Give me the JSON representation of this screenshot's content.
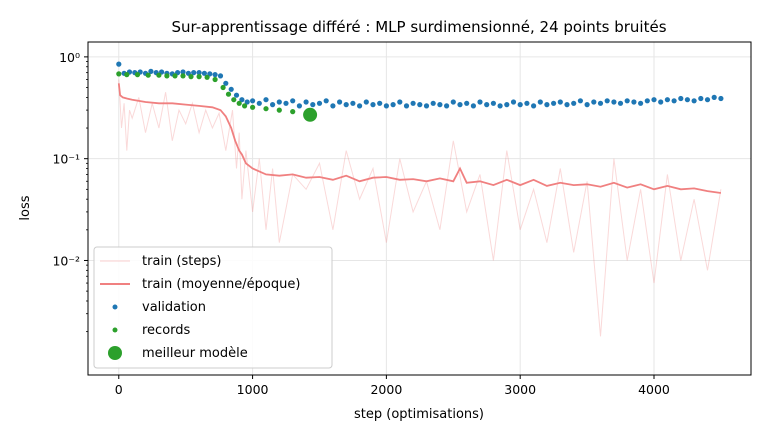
{
  "chart_data": {
    "type": "line",
    "title": "Sur-apprentissage différé : MLP surdimensionné, 24 points bruités",
    "xlabel": "step (optimisations)",
    "ylabel": "loss",
    "xlim": [
      -230,
      4725
    ],
    "ylim": [
      0.00075,
      1.4
    ],
    "yscale": "log",
    "grid": true,
    "legend_position": "lower-left",
    "x_ticks": [
      0,
      1000,
      2000,
      3000,
      4000
    ],
    "x_tick_labels": [
      "0",
      "1000",
      "2000",
      "3000",
      "4000"
    ],
    "y_ticks": [
      0.01,
      0.1,
      1
    ],
    "y_tick_labels": [
      "10⁻²",
      "10⁻¹",
      "10⁰"
    ],
    "series": [
      {
        "name": "train (steps)",
        "style": "thin-line",
        "color": "#f08080",
        "x": [
          0,
          20,
          40,
          60,
          80,
          100,
          150,
          200,
          250,
          300,
          350,
          400,
          450,
          500,
          550,
          600,
          650,
          700,
          750,
          800,
          850,
          880,
          900,
          920,
          950,
          1000,
          1050,
          1100,
          1150,
          1200,
          1300,
          1400,
          1500,
          1600,
          1700,
          1800,
          1900,
          2000,
          2100,
          2200,
          2300,
          2400,
          2500,
          2600,
          2700,
          2800,
          2900,
          3000,
          3100,
          3200,
          3300,
          3400,
          3500,
          3600,
          3700,
          3800,
          3900,
          4000,
          4100,
          4200,
          4300,
          4400,
          4500
        ],
        "y": [
          0.6,
          0.2,
          0.35,
          0.12,
          0.3,
          0.25,
          0.4,
          0.18,
          0.35,
          0.2,
          0.45,
          0.15,
          0.3,
          0.22,
          0.35,
          0.18,
          0.3,
          0.2,
          0.28,
          0.12,
          0.3,
          0.08,
          0.18,
          0.04,
          0.12,
          0.03,
          0.1,
          0.02,
          0.08,
          0.015,
          0.07,
          0.05,
          0.09,
          0.02,
          0.12,
          0.04,
          0.08,
          0.015,
          0.1,
          0.03,
          0.06,
          0.02,
          0.15,
          0.03,
          0.07,
          0.01,
          0.12,
          0.02,
          0.05,
          0.015,
          0.08,
          0.012,
          0.06,
          0.0018,
          0.1,
          0.01,
          0.05,
          0.006,
          0.07,
          0.01,
          0.04,
          0.008,
          0.05
        ]
      },
      {
        "name": "train (moyenne/époque)",
        "style": "line",
        "color": "#f08080",
        "x": [
          0,
          10,
          30,
          60,
          100,
          200,
          300,
          400,
          500,
          600,
          700,
          760,
          800,
          840,
          870,
          900,
          920,
          950,
          1000,
          1050,
          1100,
          1200,
          1300,
          1400,
          1500,
          1600,
          1700,
          1800,
          1900,
          2000,
          2100,
          2200,
          2300,
          2400,
          2500,
          2550,
          2600,
          2700,
          2800,
          2900,
          3000,
          3100,
          3200,
          3300,
          3400,
          3500,
          3600,
          3700,
          3800,
          3900,
          4000,
          4100,
          4200,
          4300,
          4400,
          4500
        ],
        "y": [
          0.55,
          0.42,
          0.4,
          0.39,
          0.38,
          0.36,
          0.35,
          0.35,
          0.34,
          0.33,
          0.32,
          0.3,
          0.26,
          0.2,
          0.15,
          0.12,
          0.11,
          0.09,
          0.08,
          0.075,
          0.07,
          0.068,
          0.07,
          0.065,
          0.066,
          0.062,
          0.068,
          0.06,
          0.065,
          0.066,
          0.062,
          0.063,
          0.06,
          0.064,
          0.06,
          0.08,
          0.058,
          0.06,
          0.055,
          0.062,
          0.055,
          0.062,
          0.054,
          0.058,
          0.055,
          0.056,
          0.053,
          0.058,
          0.052,
          0.056,
          0.05,
          0.054,
          0.05,
          0.051,
          0.048,
          0.046
        ]
      },
      {
        "name": "validation",
        "style": "points",
        "color": "#1f77b4",
        "x": [
          0,
          40,
          80,
          120,
          160,
          200,
          240,
          280,
          320,
          360,
          400,
          440,
          480,
          520,
          560,
          600,
          640,
          680,
          720,
          760,
          800,
          840,
          880,
          920,
          960,
          1000,
          1050,
          1100,
          1150,
          1200,
          1250,
          1300,
          1350,
          1400,
          1450,
          1500,
          1550,
          1600,
          1650,
          1700,
          1750,
          1800,
          1850,
          1900,
          1950,
          2000,
          2050,
          2100,
          2150,
          2200,
          2250,
          2300,
          2350,
          2400,
          2450,
          2500,
          2550,
          2600,
          2650,
          2700,
          2750,
          2800,
          2850,
          2900,
          2950,
          3000,
          3050,
          3100,
          3150,
          3200,
          3250,
          3300,
          3350,
          3400,
          3450,
          3500,
          3550,
          3600,
          3650,
          3700,
          3750,
          3800,
          3850,
          3900,
          3950,
          4000,
          4050,
          4100,
          4150,
          4200,
          4250,
          4300,
          4350,
          4400,
          4450,
          4500
        ],
        "y": [
          0.85,
          0.69,
          0.71,
          0.7,
          0.71,
          0.69,
          0.72,
          0.7,
          0.71,
          0.69,
          0.68,
          0.7,
          0.71,
          0.69,
          0.7,
          0.7,
          0.69,
          0.68,
          0.67,
          0.65,
          0.55,
          0.48,
          0.42,
          0.38,
          0.36,
          0.37,
          0.35,
          0.38,
          0.34,
          0.36,
          0.35,
          0.37,
          0.33,
          0.36,
          0.34,
          0.35,
          0.37,
          0.33,
          0.36,
          0.34,
          0.35,
          0.33,
          0.36,
          0.34,
          0.35,
          0.33,
          0.34,
          0.36,
          0.33,
          0.35,
          0.34,
          0.33,
          0.35,
          0.34,
          0.33,
          0.36,
          0.34,
          0.35,
          0.33,
          0.36,
          0.34,
          0.35,
          0.33,
          0.34,
          0.36,
          0.34,
          0.35,
          0.33,
          0.36,
          0.34,
          0.35,
          0.36,
          0.34,
          0.35,
          0.37,
          0.34,
          0.36,
          0.35,
          0.37,
          0.36,
          0.35,
          0.37,
          0.36,
          0.35,
          0.37,
          0.38,
          0.36,
          0.38,
          0.37,
          0.39,
          0.38,
          0.37,
          0.39,
          0.38,
          0.4,
          0.39
        ]
      },
      {
        "name": "records",
        "style": "points",
        "color": "#2ca02c",
        "x": [
          0,
          60,
          140,
          220,
          300,
          360,
          420,
          480,
          540,
          600,
          660,
          720,
          780,
          820,
          860,
          900,
          940,
          1000,
          1100,
          1200,
          1300,
          1400,
          1430
        ],
        "y": [
          0.68,
          0.67,
          0.67,
          0.66,
          0.66,
          0.65,
          0.65,
          0.65,
          0.64,
          0.64,
          0.63,
          0.6,
          0.5,
          0.43,
          0.38,
          0.35,
          0.33,
          0.32,
          0.31,
          0.3,
          0.29,
          0.28,
          0.27
        ]
      },
      {
        "name": "meilleur modèle",
        "style": "big-point",
        "color": "#2ca02c",
        "x": [
          1430
        ],
        "y": [
          0.27
        ]
      }
    ]
  }
}
